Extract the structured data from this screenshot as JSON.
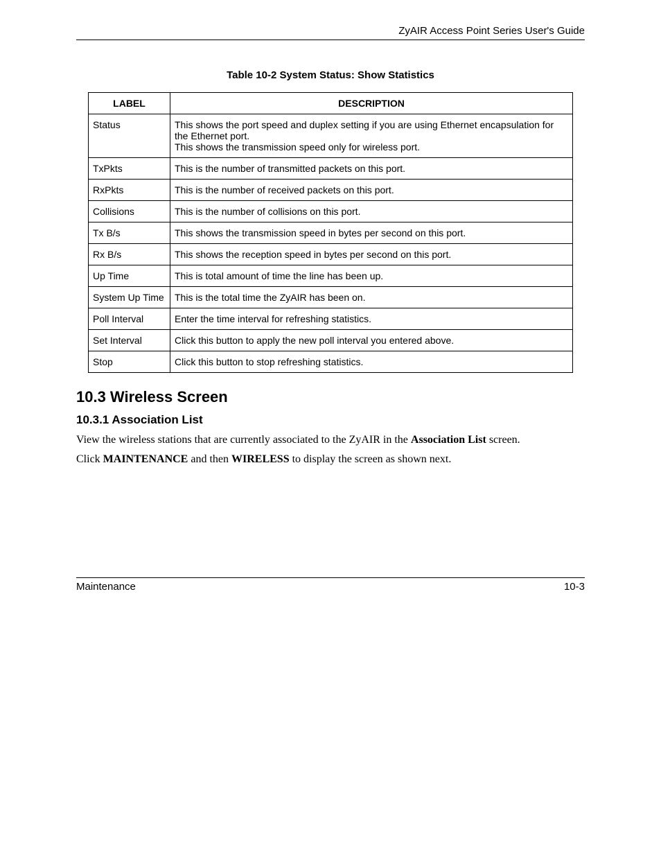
{
  "header": {
    "guide_title": "ZyAIR Access Point Series User's Guide"
  },
  "table": {
    "caption": "Table 10-2 System Status: Show Statistics",
    "columns": [
      "LABEL",
      "DESCRIPTION"
    ],
    "rows": [
      {
        "label": "Status",
        "description": "This shows the port speed and duplex setting if you are using Ethernet encapsulation for the Ethernet port.\nThis shows the transmission speed only for wireless port."
      },
      {
        "label": "TxPkts",
        "description": "This is the number of transmitted packets on this port."
      },
      {
        "label": "RxPkts",
        "description": "This is the number of received packets on this port."
      },
      {
        "label": "Collisions",
        "description": "This is the number of collisions on this port."
      },
      {
        "label": "Tx B/s",
        "description": "This shows the transmission speed in bytes per second on this port."
      },
      {
        "label": "Rx B/s",
        "description": "This shows the reception speed in bytes per second on this port."
      },
      {
        "label": "Up Time",
        "description": "This is total amount of time the line has been up."
      },
      {
        "label": "System Up Time",
        "description": "This is the total time the ZyAIR has been on."
      },
      {
        "label": "Poll Interval",
        "description": "Enter the time interval for refreshing statistics."
      },
      {
        "label": "Set Interval",
        "description": "Click this button to apply the new poll interval you entered above."
      },
      {
        "label": "Stop",
        "description": "Click this button to stop refreshing statistics."
      }
    ]
  },
  "sections": {
    "h2": "10.3  Wireless Screen",
    "h3": "10.3.1 Association List",
    "para1_pre": "View the wireless stations that are currently associated to the ZyAIR in the ",
    "para1_bold": "Association List",
    "para1_post": " screen.",
    "para2_pre": "Click ",
    "para2_bold1": "MAINTENANCE",
    "para2_mid": " and then ",
    "para2_bold2": "WIRELESS",
    "para2_post": " to display the screen as shown next."
  },
  "footer": {
    "left": "Maintenance",
    "right": "10-3"
  }
}
